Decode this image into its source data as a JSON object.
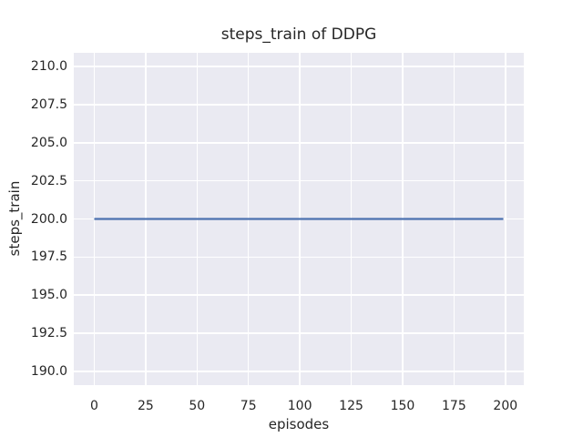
{
  "chart_data": {
    "type": "line",
    "title": "steps_train of DDPG",
    "xlabel": "episodes",
    "ylabel": "steps_train",
    "xlim": [
      -9.95,
      208.95
    ],
    "ylim": [
      189.1,
      210.9
    ],
    "xticks": [
      0,
      25,
      50,
      75,
      100,
      125,
      150,
      175,
      200
    ],
    "xtick_labels": [
      "0",
      "25",
      "50",
      "75",
      "100",
      "125",
      "150",
      "175",
      "200"
    ],
    "yticks": [
      190.0,
      192.5,
      195.0,
      197.5,
      200.0,
      202.5,
      205.0,
      207.5,
      210.0
    ],
    "ytick_labels": [
      "190.0",
      "192.5",
      "195.0",
      "197.5",
      "200.0",
      "202.5",
      "205.0",
      "207.5",
      "210.0"
    ],
    "grid": true,
    "legend": null,
    "series": [
      {
        "name": "steps_train",
        "color": "#4c72b0",
        "x": [
          0,
          199
        ],
        "y": [
          200,
          200
        ],
        "description": "constant value of 200 training steps for every episode from 0 to 199"
      }
    ],
    "style": {
      "figure_background": "#ffffff",
      "plot_background": "#eaeaf2",
      "grid_color": "#ffffff",
      "text_color": "#262626"
    }
  }
}
